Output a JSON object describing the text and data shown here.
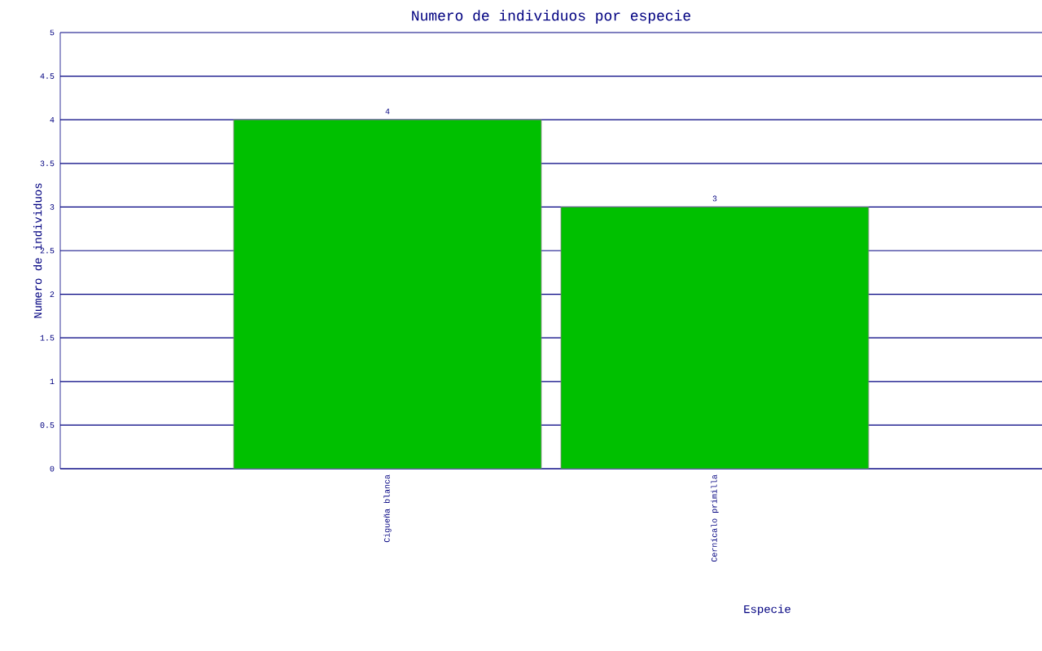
{
  "chart_data": {
    "type": "bar",
    "title": "Numero de individuos por especie",
    "xlabel": "Especie",
    "ylabel": "Numero de individuos",
    "categories": [
      "Cigueña blanca",
      "Cernícalo primilla"
    ],
    "values": [
      4,
      3
    ],
    "color": "#00c000",
    "data_labels": true,
    "ylim": [
      0,
      5
    ],
    "yticks": [
      0,
      0.5,
      1,
      1.5,
      2,
      2.5,
      3,
      3.5,
      4,
      4.5,
      5
    ],
    "grid": "y"
  }
}
